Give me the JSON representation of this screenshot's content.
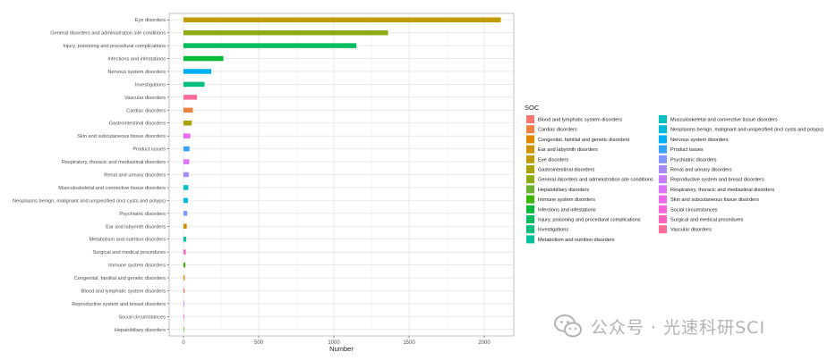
{
  "chart_data": {
    "type": "bar",
    "orientation": "horizontal",
    "title": "",
    "xlabel": "Number",
    "ylabel": "",
    "xlim": [
      0,
      2200
    ],
    "xticks": [
      0,
      500,
      1000,
      1500,
      2000
    ],
    "xtick_labels": [
      "0",
      "500",
      "1000",
      "1500",
      "2000"
    ],
    "grid": true,
    "legend_title": "SOC",
    "legend_position": "right",
    "categories": [
      "Eye disorders",
      "General disorders and administration site conditions",
      "Injury, poisoning and procedural complications",
      "Infections and infestations",
      "Nervous system disorders",
      "Investigations",
      "Vascular disorders",
      "Cardiac disorders",
      "Gastrointestinal disorders",
      "Skin and subcutaneous tissue disorders",
      "Product issues",
      "Respiratory, thoracic and mediastinal disorders",
      "Renal and urinary disorders",
      "Musculoskeletal and connective tissue disorders",
      "Neoplasms benign, malignant and unspecified (incl cysts and polyps)",
      "Psychiatric disorders",
      "Ear and labyrinth disorders",
      "Metabolism and nutrition disorders",
      "Surgical and medical procedures",
      "Immune system disorders",
      "Congenital, familial and genetic disorders",
      "Blood and lymphatic system disorders",
      "Reproductive system and breast disorders",
      "Social circumstances",
      "Hepatobiliary disorders"
    ],
    "values": [
      2110,
      1360,
      1150,
      265,
      185,
      140,
      90,
      62,
      55,
      45,
      40,
      38,
      35,
      32,
      30,
      25,
      22,
      18,
      15,
      12,
      8,
      8,
      5,
      4,
      3
    ],
    "legend": [
      {
        "label": "Blood and lymphatic system disorders",
        "color": "#F8766D"
      },
      {
        "label": "Cardiac disorders",
        "color": "#EE8042"
      },
      {
        "label": "Congenital, familial and genetic disorders",
        "color": "#E38900"
      },
      {
        "label": "Ear and labyrinth disorders",
        "color": "#D39200"
      },
      {
        "label": "Eye disorders",
        "color": "#C09B00"
      },
      {
        "label": "Gastrointestinal disorders",
        "color": "#A8A300"
      },
      {
        "label": "General disorders and administration site conditions",
        "color": "#8EAB12"
      },
      {
        "label": "Hepatobiliary disorders",
        "color": "#6CB22E"
      },
      {
        "label": "Immune system disorders",
        "color": "#39B600"
      },
      {
        "label": "Infections and infestations",
        "color": "#00BA38"
      },
      {
        "label": "Injury, poisoning and procedural complications",
        "color": "#00BD5F"
      },
      {
        "label": "Investigations",
        "color": "#00BF7D"
      },
      {
        "label": "Metabolism and nutrition disorders",
        "color": "#00C19A"
      },
      {
        "label": "Musculoskeletal and connective tissue disorders",
        "color": "#00BFC4"
      },
      {
        "label": "Neoplasms benign, malignant and unspecified (incl cysts and polyps)",
        "color": "#00BAE0"
      },
      {
        "label": "Nervous system disorders",
        "color": "#00B0F6"
      },
      {
        "label": "Product issues",
        "color": "#35A2FF"
      },
      {
        "label": "Psychiatric disorders",
        "color": "#7F96FF"
      },
      {
        "label": "Renal and urinary disorders",
        "color": "#A58AFF"
      },
      {
        "label": "Reproductive system and breast disorders",
        "color": "#C77CFF"
      },
      {
        "label": "Respiratory, thoracic and mediastinal disorders",
        "color": "#DC71FA"
      },
      {
        "label": "Skin and subcutaneous tissue disorders",
        "color": "#EC69EF"
      },
      {
        "label": "Social circumstances",
        "color": "#FA62DB"
      },
      {
        "label": "Surgical and medical procedures",
        "color": "#FF62BC"
      },
      {
        "label": "Vascular disorders",
        "color": "#FF6A98"
      }
    ]
  },
  "watermark": {
    "text": "公众号 · 光速科研SCI",
    "icon": "wechat-icon"
  }
}
